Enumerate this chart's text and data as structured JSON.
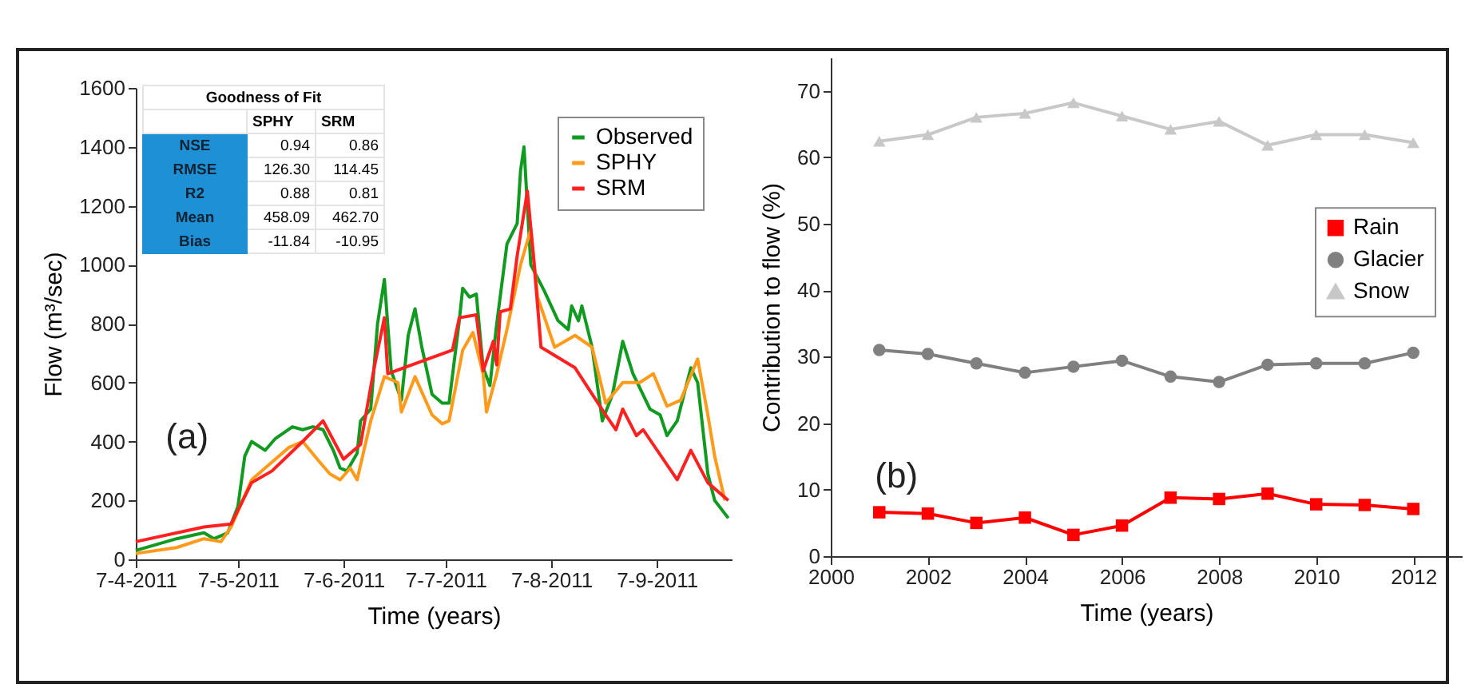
{
  "chart_data": [
    {
      "type": "line",
      "xlabel": "Time (years)",
      "ylabel": "Flow (m³/sec)",
      "annotations": [
        "(a)",
        "Goodness of Fit",
        "SPHY",
        "SRM",
        "NSE",
        "0.94",
        "0.86",
        "RMSE",
        "126.30",
        "114.45",
        "R2",
        "0.88",
        "0.81",
        "Mean",
        "458.09",
        "462.70",
        "Bias",
        "-11.84",
        "-10.95"
      ],
      "xlim": [
        "2011-04-07",
        "2011-09-29"
      ],
      "xticks": [
        {
          "value": "2011-04-07",
          "label": "7-4-2011"
        },
        {
          "value": "2011-05-07",
          "label": "7-5-2011"
        },
        {
          "value": "2011-06-07",
          "label": "7-6-2011"
        },
        {
          "value": "2011-07-07",
          "label": "7-7-2011"
        },
        {
          "value": "2011-08-07",
          "label": "7-8-2011"
        },
        {
          "value": "2011-09-07",
          "label": "7-9-2011"
        }
      ],
      "ylim": [
        0,
        1600
      ],
      "yticks": [
        0,
        200,
        400,
        600,
        800,
        1000,
        1200,
        1400,
        1600
      ],
      "legend": "top right",
      "line_style": "solid",
      "marker": "none",
      "series": [
        {
          "name": "Observed",
          "color": "#109a20",
          "x": [
            "2011-04-07",
            "2011-04-19",
            "2011-04-27",
            "2011-04-30",
            "2011-05-04",
            "2011-05-07",
            "2011-05-09",
            "2011-05-11",
            "2011-05-15",
            "2011-05-18",
            "2011-05-23",
            "2011-05-26",
            "2011-05-29",
            "2011-06-01",
            "2011-06-04",
            "2011-06-06",
            "2011-06-08",
            "2011-06-11",
            "2011-06-12",
            "2011-06-15",
            "2011-06-17",
            "2011-06-19",
            "2011-06-21",
            "2011-06-24",
            "2011-06-26",
            "2011-06-28",
            "2011-06-30",
            "2011-07-03",
            "2011-07-06",
            "2011-07-08",
            "2011-07-11",
            "2011-07-12",
            "2011-07-14",
            "2011-07-16",
            "2011-07-18",
            "2011-07-20",
            "2011-07-22",
            "2011-07-25",
            "2011-07-28",
            "2011-07-29",
            "2011-07-30",
            "2011-08-01",
            "2011-08-05",
            "2011-08-09",
            "2011-08-12",
            "2011-08-13",
            "2011-08-15",
            "2011-08-16",
            "2011-08-19",
            "2011-08-22",
            "2011-08-25",
            "2011-08-28",
            "2011-08-31",
            "2011-09-05",
            "2011-09-08",
            "2011-09-10",
            "2011-09-13",
            "2011-09-17",
            "2011-09-19",
            "2011-09-22",
            "2011-09-24",
            "2011-09-28"
          ],
          "values": [
            30,
            70,
            90,
            70,
            90,
            180,
            350,
            400,
            370,
            410,
            450,
            440,
            450,
            440,
            370,
            310,
            300,
            360,
            470,
            510,
            800,
            950,
            640,
            540,
            760,
            850,
            720,
            560,
            530,
            530,
            810,
            920,
            890,
            900,
            650,
            590,
            800,
            1070,
            1140,
            1320,
            1400,
            1000,
            910,
            810,
            780,
            860,
            810,
            860,
            720,
            470,
            560,
            740,
            630,
            510,
            490,
            420,
            470,
            650,
            600,
            290,
            200,
            140
          ]
        },
        {
          "name": "SPHY",
          "color": "#ff9a1a",
          "x": [
            "2011-04-07",
            "2011-04-19",
            "2011-04-27",
            "2011-05-02",
            "2011-05-05",
            "2011-05-11",
            "2011-05-17",
            "2011-05-22",
            "2011-05-26",
            "2011-05-31",
            "2011-06-03",
            "2011-06-06",
            "2011-06-09",
            "2011-06-11",
            "2011-06-15",
            "2011-06-19",
            "2011-06-23",
            "2011-06-24",
            "2011-06-28",
            "2011-07-03",
            "2011-07-06",
            "2011-07-08",
            "2011-07-12",
            "2011-07-15",
            "2011-07-18",
            "2011-07-19",
            "2011-07-22",
            "2011-07-25",
            "2011-07-29",
            "2011-08-01",
            "2011-08-03",
            "2011-08-08",
            "2011-08-14",
            "2011-08-19",
            "2011-08-23",
            "2011-08-28",
            "2011-09-02",
            "2011-09-06",
            "2011-09-10",
            "2011-09-14",
            "2011-09-19",
            "2011-09-22",
            "2011-09-24",
            "2011-09-27"
          ],
          "values": [
            20,
            40,
            70,
            60,
            110,
            270,
            330,
            380,
            400,
            330,
            290,
            270,
            310,
            270,
            470,
            620,
            600,
            500,
            620,
            490,
            460,
            470,
            710,
            770,
            630,
            500,
            630,
            780,
            1000,
            1120,
            890,
            720,
            760,
            720,
            530,
            600,
            600,
            630,
            520,
            540,
            680,
            490,
            350,
            200
          ]
        },
        {
          "name": "SRM",
          "color": "#ff2020",
          "x": [
            "2011-04-07",
            "2011-04-27",
            "2011-05-05",
            "2011-05-11",
            "2011-05-17",
            "2011-05-26",
            "2011-06-01",
            "2011-06-07",
            "2011-06-12",
            "2011-06-16",
            "2011-06-19",
            "2011-06-20",
            "2011-07-09",
            "2011-07-11",
            "2011-07-16",
            "2011-07-18",
            "2011-07-21",
            "2011-07-22",
            "2011-07-23",
            "2011-07-26",
            "2011-07-28",
            "2011-07-31",
            "2011-08-02",
            "2011-08-04",
            "2011-08-14",
            "2011-08-23",
            "2011-08-26",
            "2011-08-28",
            "2011-09-01",
            "2011-09-03",
            "2011-09-13",
            "2011-09-17",
            "2011-09-22",
            "2011-09-28"
          ],
          "values": [
            60,
            110,
            120,
            260,
            300,
            400,
            470,
            340,
            390,
            650,
            820,
            630,
            710,
            820,
            830,
            640,
            740,
            660,
            840,
            850,
            1030,
            1250,
            1000,
            720,
            650,
            490,
            440,
            510,
            420,
            440,
            270,
            370,
            260,
            200
          ]
        }
      ]
    },
    {
      "type": "line",
      "xlabel": "Time (years)",
      "ylabel": "Contribution to flow (%)",
      "annotations": [
        "(b)"
      ],
      "x": [
        2001,
        2002,
        2003,
        2004,
        2005,
        2006,
        2007,
        2008,
        2009,
        2010,
        2011,
        2012
      ],
      "xlim": [
        2000,
        2013
      ],
      "xticks": [
        2000,
        2002,
        2004,
        2006,
        2008,
        2010,
        2012
      ],
      "ylim": [
        0,
        75
      ],
      "yticks": [
        0,
        10,
        20,
        30,
        40,
        50,
        60,
        70
      ],
      "legend": "right",
      "line_style": "solid",
      "series": [
        {
          "name": "Rain",
          "color": "#ff0000",
          "marker": "square",
          "values": [
            6.6,
            6.4,
            5.0,
            5.8,
            3.2,
            4.6,
            8.8,
            8.6,
            9.4,
            7.8,
            7.7,
            7.1
          ]
        },
        {
          "name": "Glacier",
          "color": "#808080",
          "marker": "circle",
          "values": [
            31.0,
            30.4,
            29.0,
            27.6,
            28.5,
            29.4,
            27.0,
            26.2,
            28.8,
            29.0,
            29.0,
            30.6
          ]
        },
        {
          "name": "Snow",
          "color": "#c8c8c8",
          "marker": "triangle",
          "values": [
            62.4,
            63.4,
            66.0,
            66.6,
            68.2,
            66.2,
            64.2,
            65.4,
            61.8,
            63.4,
            63.4,
            62.2
          ]
        }
      ]
    }
  ]
}
